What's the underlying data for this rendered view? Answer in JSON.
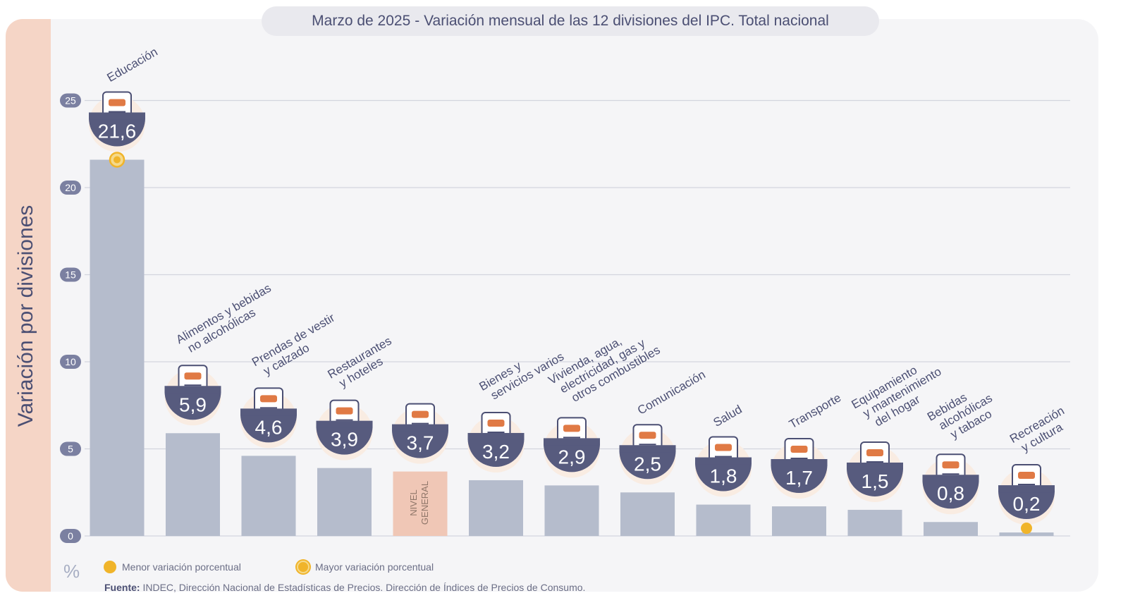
{
  "title": {
    "date": "Marzo de 2025",
    "subtitle": "- Variación mensual de las 12 divisiones del IPC. Total nacional"
  },
  "colors": {
    "panel_bg": "#f5f5f7",
    "side_band": "#f5d5c6",
    "bar": "#b5bccc",
    "bar_general": "#f0c7b6",
    "badge": "#575b7e",
    "marker": "#f0b42a",
    "icon_orange": "#e07a45",
    "label_text": "#4b4f73"
  },
  "labels": {
    "general_bar": [
      "NIVEL",
      "GENERAL"
    ],
    "percent_unit": "%"
  },
  "legend": {
    "min_label": "Menor variación porcentual",
    "max_label": "Mayor variación porcentual"
  },
  "footnote": {
    "prefix": "Fuente:",
    "text": "INDEC, Dirección Nacional de Estadísticas de Precios. Dirección de Índices de Precios de Consumo."
  },
  "chart_data": {
    "type": "bar",
    "ylabel": "Variación por divisiones",
    "ylim": [
      0,
      25
    ],
    "yticks": [
      0,
      5,
      10,
      15,
      20,
      25
    ],
    "grid": true,
    "categories": [
      "Educación",
      "Alimentos y bebidas no alcohólicas",
      "Prendas de vestir y calzado",
      "Restaurantes y hoteles",
      "Nivel general",
      "Bienes y servicios varios",
      "Vivienda, agua, electricidad, gas y otros combustibles",
      "Comunicación",
      "Salud",
      "Transporte",
      "Equipamiento y mantenimiento del hogar",
      "Bebidas alcohólicas y tabaco",
      "Recreación y cultura"
    ],
    "category_label_lines": [
      [
        "Educación"
      ],
      [
        "Alimentos y bebidas",
        "no alcohólicas"
      ],
      [
        "Prendas de vestir",
        "y calzado"
      ],
      [
        "Restaurantes",
        "y hoteles"
      ],
      [],
      [
        "Bienes y",
        "servicios varios"
      ],
      [
        "Vivienda, agua,",
        "electricidad, gas y",
        "otros combustibles"
      ],
      [
        "Comunicación"
      ],
      [
        "Salud"
      ],
      [
        "Transporte"
      ],
      [
        "Equipamiento",
        "y mantenimiento",
        "del hogar"
      ],
      [
        "Bebidas",
        "alcohólicas",
        "y tabaco"
      ],
      [
        "Recreación",
        "y cultura"
      ]
    ],
    "icons": [
      "notebook-icon",
      "food-icon",
      "clothing-icon",
      "restaurant-icon",
      "shopping-bag-icon",
      "comb-scissors-icon",
      "plug-bulb-icon",
      "mobile-phone-icon",
      "first-aid-icon",
      "sube-card-car-icon",
      "appliances-icon",
      "bottle-glass-icon",
      "beach-umbrella-icon"
    ],
    "values": [
      21.6,
      5.9,
      4.6,
      3.9,
      3.7,
      3.2,
      2.9,
      2.5,
      1.8,
      1.7,
      1.5,
      0.8,
      0.2
    ],
    "value_labels": [
      "21,6",
      "5,9",
      "4,6",
      "3,9",
      "3,7",
      "3,2",
      "2,9",
      "2,5",
      "1,8",
      "1,7",
      "1,5",
      "0,8",
      "0,2"
    ],
    "general_index": 4,
    "max_index": 0,
    "min_index": 12
  }
}
